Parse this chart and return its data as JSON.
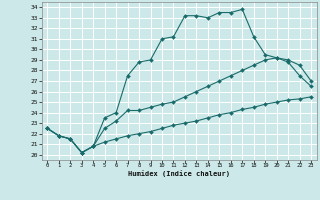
{
  "xlabel": "Humidex (Indice chaleur)",
  "xlim": [
    -0.5,
    23.5
  ],
  "ylim": [
    19.5,
    34.5
  ],
  "xticks": [
    0,
    1,
    2,
    3,
    4,
    5,
    6,
    7,
    8,
    9,
    10,
    11,
    12,
    13,
    14,
    15,
    16,
    17,
    18,
    19,
    20,
    21,
    22,
    23
  ],
  "yticks": [
    20,
    21,
    22,
    23,
    24,
    25,
    26,
    27,
    28,
    29,
    30,
    31,
    32,
    33,
    34
  ],
  "bg_color": "#cce8e8",
  "line_color": "#1a6b6b",
  "grid_color": "#ffffff",
  "curve1_x": [
    0,
    1,
    2,
    3,
    4,
    5,
    6,
    7,
    8,
    9,
    10,
    11,
    12,
    13,
    14,
    15,
    16,
    17,
    18,
    19,
    20,
    21,
    22,
    23
  ],
  "curve1_y": [
    22.5,
    21.8,
    21.5,
    20.2,
    20.8,
    23.5,
    24.0,
    27.5,
    28.8,
    29.0,
    31.0,
    31.2,
    33.2,
    33.2,
    33.0,
    33.5,
    33.5,
    33.8,
    31.2,
    29.5,
    29.2,
    28.8,
    27.5,
    26.5
  ],
  "curve2_x": [
    0,
    1,
    2,
    3,
    4,
    5,
    6,
    7,
    8,
    9,
    10,
    11,
    12,
    13,
    14,
    15,
    16,
    17,
    18,
    19,
    20,
    21,
    22,
    23
  ],
  "curve2_y": [
    22.5,
    21.8,
    21.5,
    20.2,
    20.8,
    22.5,
    23.2,
    24.2,
    24.2,
    24.5,
    24.8,
    25.0,
    25.5,
    26.0,
    26.5,
    27.0,
    27.5,
    28.0,
    28.5,
    29.0,
    29.2,
    29.0,
    28.5,
    27.0
  ],
  "curve3_x": [
    0,
    1,
    2,
    3,
    4,
    5,
    6,
    7,
    8,
    9,
    10,
    11,
    12,
    13,
    14,
    15,
    16,
    17,
    18,
    19,
    20,
    21,
    22,
    23
  ],
  "curve3_y": [
    22.5,
    21.8,
    21.5,
    20.2,
    20.8,
    21.2,
    21.5,
    21.8,
    22.0,
    22.2,
    22.5,
    22.8,
    23.0,
    23.2,
    23.5,
    23.8,
    24.0,
    24.3,
    24.5,
    24.8,
    25.0,
    25.2,
    25.3,
    25.5
  ]
}
